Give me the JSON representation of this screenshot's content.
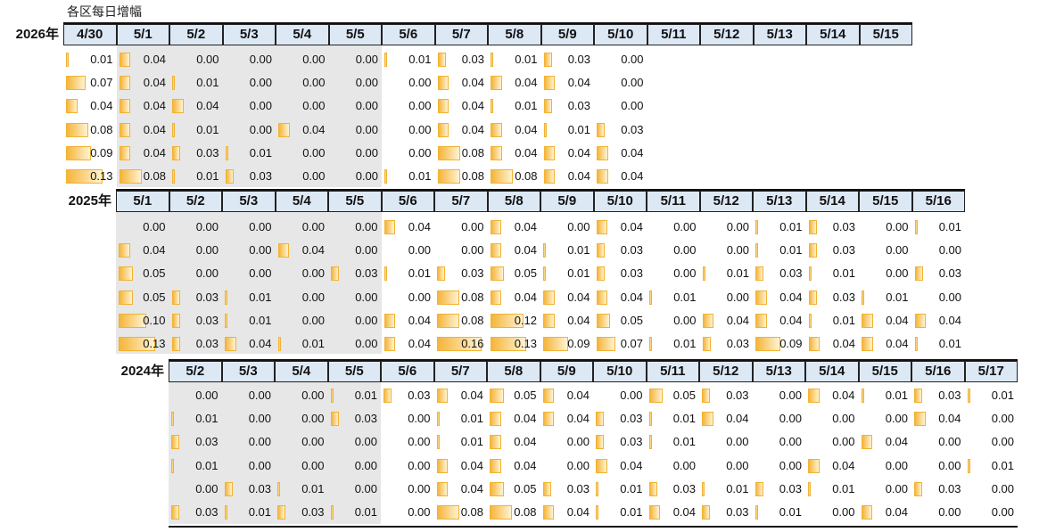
{
  "chart_data": {
    "type": "table",
    "title": "各区每日增幅",
    "blocks": [
      {
        "year": "2026年",
        "dates": [
          "4/30",
          "5/1",
          "5/2",
          "5/3",
          "5/4",
          "5/5",
          "5/6",
          "5/7",
          "5/8",
          "5/9",
          "5/10",
          "5/11",
          "5/12",
          "5/13",
          "5/14",
          "5/15"
        ],
        "rows": [
          [
            "0.01",
            "0.04",
            "0.00",
            "0.00",
            "0.00",
            "0.00",
            "0.01",
            "0.03",
            "0.01",
            "0.03",
            "0.00"
          ],
          [
            "0.07",
            "0.04",
            "0.01",
            "0.00",
            "0.00",
            "0.00",
            "0.00",
            "0.04",
            "0.04",
            "0.04",
            "0.00"
          ],
          [
            "0.04",
            "0.04",
            "0.04",
            "0.00",
            "0.00",
            "0.00",
            "0.00",
            "0.04",
            "0.01",
            "0.03",
            "0.00"
          ],
          [
            "0.08",
            "0.04",
            "0.01",
            "0.00",
            "0.04",
            "0.00",
            "0.00",
            "0.04",
            "0.04",
            "0.01",
            "0.03"
          ],
          [
            "0.09",
            "0.04",
            "0.03",
            "0.01",
            "0.00",
            "0.00",
            "0.00",
            "0.08",
            "0.04",
            "0.04",
            "0.04"
          ],
          [
            "0.13",
            "0.08",
            "0.01",
            "0.03",
            "0.00",
            "0.00",
            "0.01",
            "0.08",
            "0.08",
            "0.04",
            "0.04"
          ]
        ]
      },
      {
        "year": "2025年",
        "dates": [
          "5/1",
          "5/2",
          "5/3",
          "5/4",
          "5/5",
          "5/6",
          "5/7",
          "5/8",
          "5/9",
          "5/10",
          "5/11",
          "5/12",
          "5/13",
          "5/14",
          "5/15",
          "5/16"
        ],
        "rows": [
          [
            "0.00",
            "0.00",
            "0.00",
            "0.00",
            "0.00",
            "0.04",
            "0.00",
            "0.04",
            "0.00",
            "0.04",
            "0.00",
            "0.00",
            "0.01",
            "0.03",
            "0.00",
            "0.01"
          ],
          [
            "0.04",
            "0.00",
            "0.00",
            "0.04",
            "0.00",
            "0.00",
            "0.00",
            "0.04",
            "0.01",
            "0.03",
            "0.00",
            "0.00",
            "0.01",
            "0.03",
            "0.00",
            "0.00"
          ],
          [
            "0.05",
            "0.00",
            "0.00",
            "0.00",
            "0.03",
            "0.01",
            "0.03",
            "0.05",
            "0.01",
            "0.03",
            "0.00",
            "0.01",
            "0.03",
            "0.01",
            "0.00",
            "0.03"
          ],
          [
            "0.05",
            "0.03",
            "0.01",
            "0.00",
            "0.00",
            "0.00",
            "0.08",
            "0.04",
            "0.04",
            "0.04",
            "0.01",
            "0.00",
            "0.04",
            "0.03",
            "0.01",
            "0.00"
          ],
          [
            "0.10",
            "0.03",
            "0.01",
            "0.00",
            "0.00",
            "0.04",
            "0.08",
            "0.12",
            "0.04",
            "0.05",
            "0.00",
            "0.04",
            "0.04",
            "0.01",
            "0.04",
            "0.04"
          ],
          [
            "0.13",
            "0.03",
            "0.04",
            "0.01",
            "0.00",
            "0.04",
            "0.16",
            "0.13",
            "0.09",
            "0.07",
            "0.01",
            "0.03",
            "0.09",
            "0.04",
            "0.04",
            "0.01"
          ]
        ]
      },
      {
        "year": "2024年",
        "dates": [
          "5/2",
          "5/3",
          "5/4",
          "5/5",
          "5/6",
          "5/7",
          "5/8",
          "5/9",
          "5/10",
          "5/11",
          "5/12",
          "5/13",
          "5/14",
          "5/15",
          "5/16",
          "5/17"
        ],
        "rows": [
          [
            "0.00",
            "0.00",
            "0.00",
            "0.01",
            "0.03",
            "0.04",
            "0.05",
            "0.04",
            "0.00",
            "0.05",
            "0.03",
            "0.00",
            "0.04",
            "0.01",
            "0.03",
            "0.01"
          ],
          [
            "0.01",
            "0.00",
            "0.00",
            "0.03",
            "0.00",
            "0.01",
            "0.04",
            "0.04",
            "0.03",
            "0.01",
            "0.04",
            "0.00",
            "0.00",
            "0.00",
            "0.04",
            "0.00"
          ],
          [
            "0.03",
            "0.00",
            "0.00",
            "0.00",
            "0.00",
            "0.01",
            "0.04",
            "0.00",
            "0.03",
            "0.01",
            "0.00",
            "0.00",
            "0.00",
            "0.04",
            "0.00",
            "0.00"
          ],
          [
            "0.01",
            "0.00",
            "0.00",
            "0.00",
            "0.00",
            "0.04",
            "0.04",
            "0.00",
            "0.04",
            "0.00",
            "0.00",
            "0.00",
            "0.04",
            "0.00",
            "0.00",
            "0.01"
          ],
          [
            "0.00",
            "0.03",
            "0.01",
            "0.00",
            "0.00",
            "0.04",
            "0.05",
            "0.03",
            "0.01",
            "0.03",
            "0.01",
            "0.03",
            "0.01",
            "0.00",
            "0.03",
            "0.00"
          ],
          [
            "0.03",
            "0.01",
            "0.03",
            "0.01",
            "0.00",
            "0.08",
            "0.08",
            "0.04",
            "0.01",
            "0.04",
            "0.03",
            "0.01",
            "0.00",
            "0.04",
            "0.00",
            "0.00"
          ]
        ]
      }
    ],
    "bar_max": 0.16,
    "shaded_dates": [
      "5/1",
      "5/2",
      "5/3",
      "5/4",
      "5/5"
    ],
    "colors": {
      "header_fill": "#dde8f5",
      "bar": "#f5b53a",
      "shade": "#e7e7e7"
    }
  }
}
